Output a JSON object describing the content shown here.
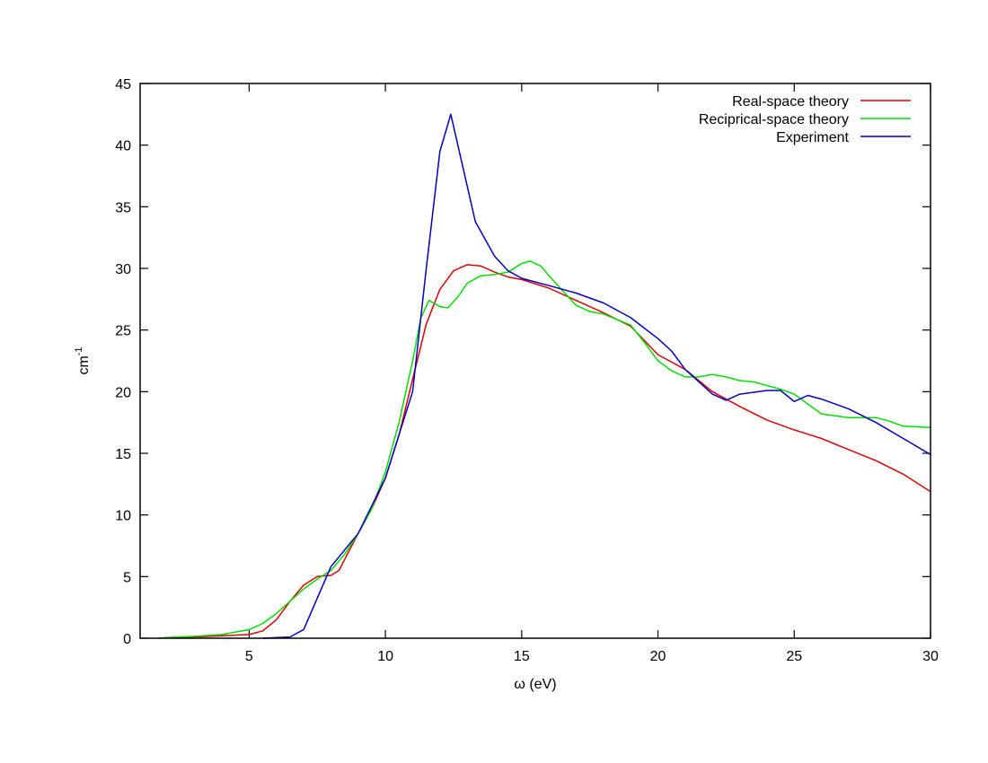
{
  "chart_data": {
    "type": "line",
    "title": "",
    "xlabel": "ω (eV)",
    "ylabel": "cm",
    "ylabel_superscript": "-1",
    "xlim": [
      1,
      30
    ],
    "ylim": [
      0,
      45
    ],
    "xticks": [
      5,
      10,
      15,
      20,
      25,
      30
    ],
    "yticks": [
      0,
      5,
      10,
      15,
      20,
      25,
      30,
      35,
      40,
      45
    ],
    "grid": false,
    "legend_position": "top-right",
    "series": [
      {
        "name": "Real-space theory",
        "color": "#e00000",
        "x": [
          1.7,
          2,
          3,
          4,
          5,
          5.5,
          6,
          6.5,
          7,
          7.5,
          8,
          8.3,
          8.6,
          9,
          9.5,
          10,
          10.5,
          11,
          11.5,
          12,
          12.5,
          13,
          13.5,
          14,
          14.5,
          15,
          16,
          17,
          18,
          19,
          20,
          21,
          22,
          23,
          24,
          25,
          26,
          27,
          28,
          29,
          30
        ],
        "y": [
          0.0,
          0.05,
          0.1,
          0.2,
          0.3,
          0.6,
          1.5,
          3.0,
          4.3,
          5.0,
          5.1,
          5.5,
          6.8,
          8.5,
          10.5,
          13.0,
          16.5,
          21.0,
          25.5,
          28.3,
          29.8,
          30.3,
          30.2,
          29.7,
          29.3,
          29.1,
          28.4,
          27.4,
          26.4,
          25.3,
          23.0,
          21.8,
          20.0,
          18.8,
          17.7,
          16.9,
          16.2,
          15.3,
          14.4,
          13.3,
          11.9
        ]
      },
      {
        "name": "Reciprical-space theory",
        "color": "#00e000",
        "x": [
          1.7,
          2,
          3,
          4,
          5,
          5.5,
          6,
          6.5,
          7,
          7.5,
          8,
          8.5,
          9,
          9.5,
          10,
          10.5,
          11,
          11.3,
          11.6,
          12,
          12.3,
          12.7,
          13,
          13.5,
          14,
          14.5,
          15,
          15.3,
          15.7,
          16,
          16.5,
          17,
          17.5,
          18,
          19,
          19.5,
          20,
          20.5,
          21,
          21.5,
          22,
          22.5,
          23,
          23.5,
          24,
          24.5,
          25,
          25.5,
          26,
          27,
          28,
          28.5,
          29,
          30
        ],
        "y": [
          0.0,
          0.05,
          0.15,
          0.3,
          0.7,
          1.2,
          2.0,
          3.0,
          4.0,
          4.8,
          5.5,
          6.8,
          8.5,
          10.5,
          13.5,
          17.5,
          22.5,
          26.0,
          27.4,
          26.9,
          26.8,
          27.8,
          28.8,
          29.4,
          29.5,
          29.7,
          30.4,
          30.6,
          30.2,
          29.4,
          28.2,
          27.0,
          26.5,
          26.3,
          25.4,
          24.0,
          22.5,
          21.7,
          21.2,
          21.2,
          21.4,
          21.2,
          20.9,
          20.8,
          20.5,
          20.2,
          19.8,
          19.0,
          18.2,
          17.9,
          17.9,
          17.6,
          17.2,
          17.1
        ]
      },
      {
        "name": "Experiment",
        "color": "#0000c0",
        "x": [
          5.5,
          6.5,
          7,
          8,
          9,
          10,
          11,
          11.5,
          12,
          12.4,
          13.3,
          14,
          14.5,
          15,
          16,
          17,
          18,
          19,
          20,
          20.5,
          21,
          22,
          22.5,
          23,
          24,
          24.5,
          25,
          25.5,
          26,
          27,
          28,
          29,
          30
        ],
        "y": [
          0.0,
          0.1,
          0.7,
          5.8,
          8.5,
          13.0,
          20.0,
          30.0,
          39.5,
          42.5,
          33.8,
          31.0,
          29.8,
          29.2,
          28.6,
          28.0,
          27.2,
          26.0,
          24.3,
          23.3,
          21.8,
          19.8,
          19.3,
          19.8,
          20.1,
          20.1,
          19.2,
          19.7,
          19.4,
          18.6,
          17.5,
          16.2,
          14.9
        ]
      }
    ]
  }
}
